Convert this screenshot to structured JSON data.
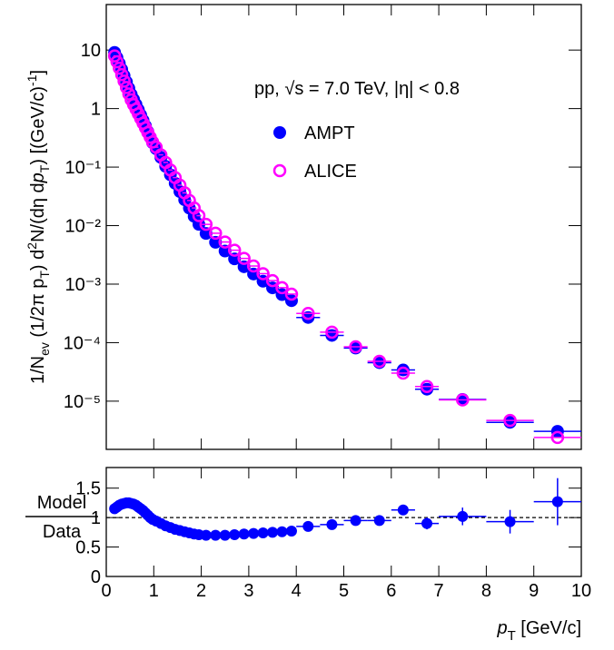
{
  "chart_data": [
    {
      "type": "scatter",
      "log_y": true,
      "ylabel": [
        "1/N",
        "ev",
        " (1/2π p",
        "T",
        ") d",
        "2",
        "N/(dη d",
        "p",
        "T",
        ") [(GeV/c)",
        "-1",
        "]"
      ],
      "annotation": "pp, √s = 7.0 TeV, |η| < 0.8",
      "x": [
        0.175,
        0.225,
        0.275,
        0.325,
        0.375,
        0.425,
        0.475,
        0.525,
        0.575,
        0.625,
        0.675,
        0.725,
        0.775,
        0.825,
        0.875,
        0.925,
        0.975,
        1.05,
        1.15,
        1.25,
        1.35,
        1.45,
        1.55,
        1.65,
        1.75,
        1.85,
        1.95,
        2.1,
        2.3,
        2.5,
        2.7,
        2.9,
        3.1,
        3.3,
        3.5,
        3.7,
        3.9,
        4.25,
        4.75,
        5.25,
        5.75,
        6.25,
        6.75,
        7.5,
        8.5,
        9.5
      ],
      "xerr": [
        0.025,
        0.025,
        0.025,
        0.025,
        0.025,
        0.025,
        0.025,
        0.025,
        0.025,
        0.025,
        0.025,
        0.025,
        0.025,
        0.025,
        0.025,
        0.025,
        0.025,
        0.05,
        0.05,
        0.05,
        0.05,
        0.05,
        0.05,
        0.05,
        0.05,
        0.05,
        0.05,
        0.1,
        0.1,
        0.1,
        0.1,
        0.1,
        0.1,
        0.1,
        0.1,
        0.1,
        0.1,
        0.25,
        0.25,
        0.25,
        0.25,
        0.25,
        0.25,
        0.5,
        0.5,
        0.5
      ],
      "series": [
        {
          "name": "AMPT",
          "color": "#0000ff",
          "marker": "filled",
          "values": [
            9.13,
            7.45,
            5.93,
            4.67,
            3.66,
            2.86,
            2.23,
            1.75,
            1.44,
            1.18,
            0.959,
            0.777,
            0.629,
            0.505,
            0.405,
            0.324,
            0.261,
            0.206,
            0.146,
            0.103,
            0.074,
            0.0529,
            0.0382,
            0.0276,
            0.0199,
            0.0144,
            0.0105,
            0.00735,
            0.00519,
            0.00368,
            0.0027,
            0.00198,
            0.00149,
            0.00112,
            0.000863,
            0.000662,
            0.000521,
            0.000269,
            0.000133,
            8.08e-05,
            4.55e-05,
            3.41e-05,
            1.6e-05,
            1.07e-05,
            4.35e-06,
            3.05e-06
          ]
        },
        {
          "name": "ALICE",
          "color": "#ff00ff",
          "marker": "open",
          "values": [
            7.94,
            6.31,
            4.9,
            3.8,
            2.95,
            2.29,
            1.78,
            1.41,
            1.17,
            0.977,
            0.813,
            0.676,
            0.562,
            0.468,
            0.389,
            0.324,
            0.269,
            0.219,
            0.162,
            0.12,
            0.0891,
            0.0661,
            0.049,
            0.0363,
            0.0269,
            0.02,
            0.0148,
            0.0105,
            0.00741,
            0.00525,
            0.0038,
            0.00275,
            0.00204,
            0.00151,
            0.00115,
            0.000871,
            0.000676,
            0.000316,
            0.000151,
            8.51e-05,
            4.79e-05,
            3.02e-05,
            1.78e-05,
            1.05e-05,
            4.68e-06,
            2.4e-06
          ]
        }
      ],
      "xlim": [
        0,
        10
      ],
      "xticks": [
        0,
        1,
        2,
        3,
        4,
        5,
        6,
        7,
        8,
        9,
        10
      ],
      "ylim": [
        1.5e-06,
        60
      ],
      "yticks": [
        {
          "value": 1e-05,
          "label": "10⁻⁵"
        },
        {
          "value": 0.0001,
          "label": "10⁻⁴"
        },
        {
          "value": 0.001,
          "label": "10⁻³"
        },
        {
          "value": 0.01,
          "label": "10⁻²"
        },
        {
          "value": 0.1,
          "label": "10⁻¹"
        },
        1,
        10
      ]
    },
    {
      "type": "ratio",
      "ylabel_top": "Model",
      "ylabel_bottom": "Data",
      "xlabel": [
        "p",
        "T",
        " [GeV/c]"
      ],
      "series": [
        {
          "color": "#0000ff",
          "values": [
            1.15,
            1.18,
            1.21,
            1.23,
            1.24,
            1.25,
            1.25,
            1.24,
            1.23,
            1.21,
            1.18,
            1.15,
            1.12,
            1.08,
            1.04,
            1.0,
            0.97,
            0.94,
            0.9,
            0.86,
            0.83,
            0.8,
            0.78,
            0.76,
            0.74,
            0.72,
            0.71,
            0.7,
            0.7,
            0.7,
            0.71,
            0.72,
            0.73,
            0.74,
            0.75,
            0.76,
            0.77,
            0.85,
            0.88,
            0.95,
            0.95,
            1.13,
            0.9,
            1.02,
            0.93,
            1.27
          ],
          "errors": [
            0.01,
            0.01,
            0.01,
            0.01,
            0.01,
            0.01,
            0.01,
            0.01,
            0.01,
            0.01,
            0.01,
            0.01,
            0.01,
            0.01,
            0.01,
            0.01,
            0.01,
            0.01,
            0.01,
            0.01,
            0.01,
            0.01,
            0.01,
            0.01,
            0.01,
            0.01,
            0.01,
            0.01,
            0.01,
            0.01,
            0.01,
            0.01,
            0.01,
            0.01,
            0.01,
            0.01,
            0.01,
            0.02,
            0.03,
            0.04,
            0.05,
            0.08,
            0.1,
            0.15,
            0.2,
            0.4
          ]
        }
      ],
      "reference_line": 1,
      "xlim": [
        0,
        10
      ],
      "xticks": [
        0,
        1,
        2,
        3,
        4,
        5,
        6,
        7,
        8,
        9,
        10
      ],
      "ylim": [
        0,
        1.85
      ],
      "yticks": [
        0,
        0.5,
        1,
        1.5
      ]
    }
  ]
}
